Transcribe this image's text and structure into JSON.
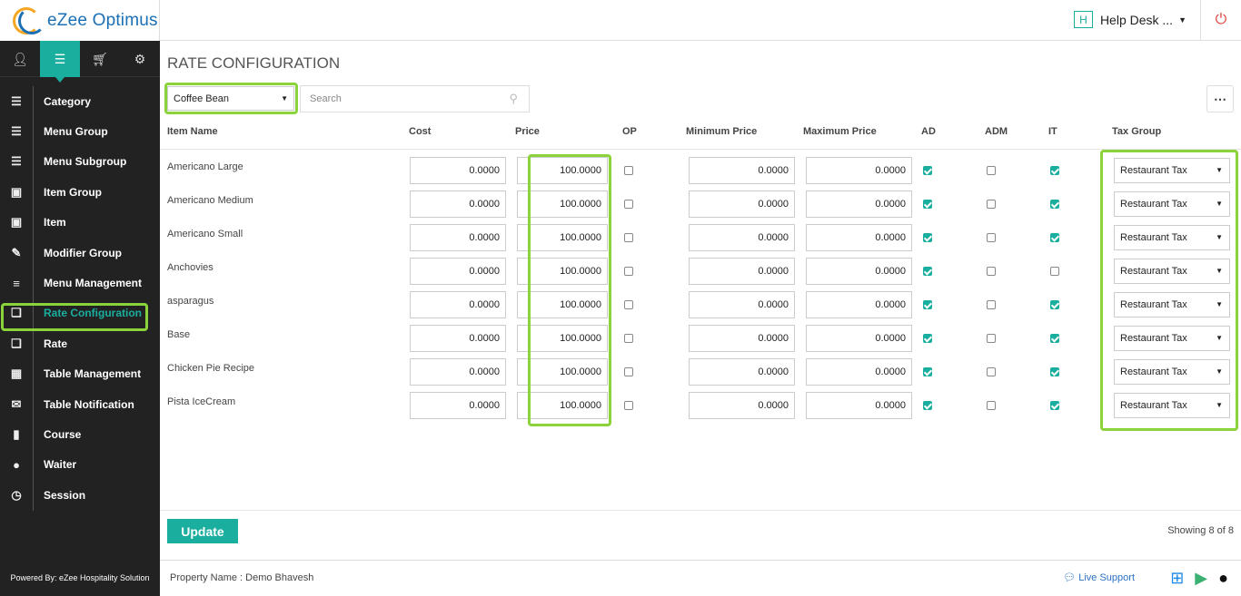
{
  "app": {
    "name": "eZee Optimus"
  },
  "header": {
    "help_label": "Help Desk ...",
    "help_badge": "H"
  },
  "sidebar": {
    "top_icons": [
      "user-icon",
      "menu-icon",
      "cart-icon",
      "gear-icon"
    ],
    "items": [
      {
        "label": "Category",
        "icon": "category-icon"
      },
      {
        "label": "Menu Group",
        "icon": "list-icon"
      },
      {
        "label": "Menu Subgroup",
        "icon": "sublist-icon"
      },
      {
        "label": "Item Group",
        "icon": "box-icon"
      },
      {
        "label": "Item",
        "icon": "cube-icon"
      },
      {
        "label": "Modifier Group",
        "icon": "edit-icon"
      },
      {
        "label": "Menu Management",
        "icon": "menu-icon"
      },
      {
        "label": "Rate Configuration",
        "icon": "rate-config-icon"
      },
      {
        "label": "Rate",
        "icon": "rate-icon"
      },
      {
        "label": "Table Management",
        "icon": "grid-icon"
      },
      {
        "label": "Table Notification",
        "icon": "chat-icon"
      },
      {
        "label": "Course",
        "icon": "book-icon"
      },
      {
        "label": "Waiter",
        "icon": "person-icon"
      },
      {
        "label": "Session",
        "icon": "timer-icon"
      }
    ],
    "powered_by": "Powered By: eZee Hospitality Solution"
  },
  "main": {
    "title": "RATE CONFIGURATION",
    "filter_value": "Coffee Bean",
    "search_placeholder": "Search",
    "columns": [
      "Item Name",
      "Cost",
      "Price",
      "OP",
      "Minimum Price",
      "Maximum Price",
      "AD",
      "ADM",
      "IT",
      "Tax Group"
    ],
    "rows": [
      {
        "name": "Americano Large",
        "cost": "0.0000",
        "price": "100.0000",
        "op": false,
        "min": "0.0000",
        "max": "0.0000",
        "ad": true,
        "adm": false,
        "it": true,
        "tax": "Restaurant Tax"
      },
      {
        "name": "Americano Medium",
        "cost": "0.0000",
        "price": "100.0000",
        "op": false,
        "min": "0.0000",
        "max": "0.0000",
        "ad": true,
        "adm": false,
        "it": true,
        "tax": "Restaurant Tax"
      },
      {
        "name": "Americano Small",
        "cost": "0.0000",
        "price": "100.0000",
        "op": false,
        "min": "0.0000",
        "max": "0.0000",
        "ad": true,
        "adm": false,
        "it": true,
        "tax": "Restaurant Tax"
      },
      {
        "name": "Anchovies",
        "cost": "0.0000",
        "price": "100.0000",
        "op": false,
        "min": "0.0000",
        "max": "0.0000",
        "ad": true,
        "adm": false,
        "it": false,
        "tax": "Restaurant Tax"
      },
      {
        "name": "asparagus",
        "cost": "0.0000",
        "price": "100.0000",
        "op": false,
        "min": "0.0000",
        "max": "0.0000",
        "ad": true,
        "adm": false,
        "it": true,
        "tax": "Restaurant Tax"
      },
      {
        "name": "Base",
        "cost": "0.0000",
        "price": "100.0000",
        "op": false,
        "min": "0.0000",
        "max": "0.0000",
        "ad": true,
        "adm": false,
        "it": true,
        "tax": "Restaurant Tax"
      },
      {
        "name": "Chicken Pie Recipe",
        "cost": "0.0000",
        "price": "100.0000",
        "op": false,
        "min": "0.0000",
        "max": "0.0000",
        "ad": true,
        "adm": false,
        "it": true,
        "tax": "Restaurant Tax"
      },
      {
        "name": "Pista IceCream",
        "cost": "0.0000",
        "price": "100.0000",
        "op": false,
        "min": "0.0000",
        "max": "0.0000",
        "ad": true,
        "adm": false,
        "it": true,
        "tax": "Restaurant Tax"
      }
    ],
    "update_label": "Update",
    "showing": "Showing 8 of 8"
  },
  "footer": {
    "property": "Property Name : Demo Bhavesh",
    "live_support": "Live Support",
    "store_icons": [
      "windows-icon",
      "play-store-icon",
      "apple-icon"
    ]
  },
  "colors": {
    "accent": "#1aae9f",
    "highlight": "#8bd33a",
    "sidebar_bg": "#222222"
  }
}
